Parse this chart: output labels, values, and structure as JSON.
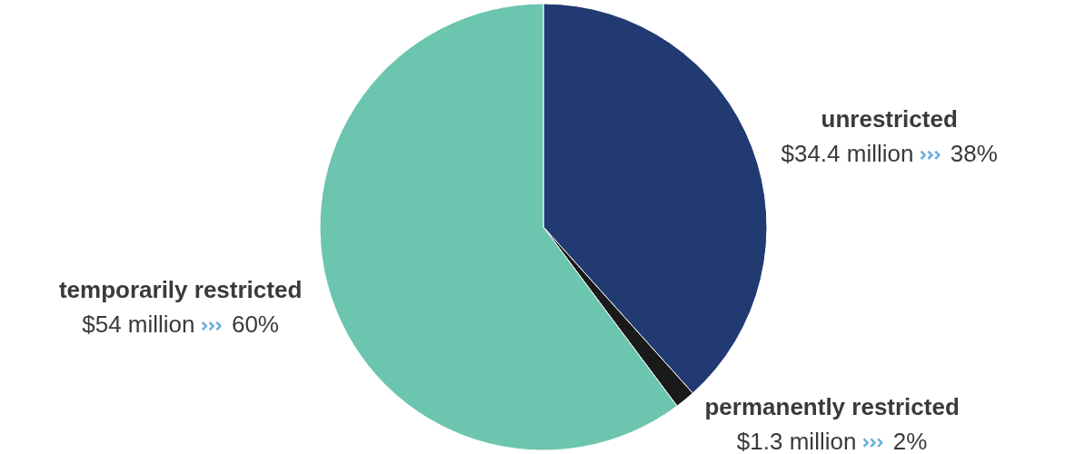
{
  "chart_data": {
    "type": "pie",
    "categories": [
      "unrestricted",
      "permanently restricted",
      "temporarily restricted"
    ],
    "values": [
      34.4,
      1.3,
      54
    ],
    "colors": [
      "#213a72",
      "#1a1a1a",
      "#6cc5ae"
    ],
    "value_labels": [
      "$34.4 million",
      "$1.3 million",
      "$54 million"
    ],
    "annotations": [
      "38%",
      "2%",
      "60%"
    ]
  }
}
